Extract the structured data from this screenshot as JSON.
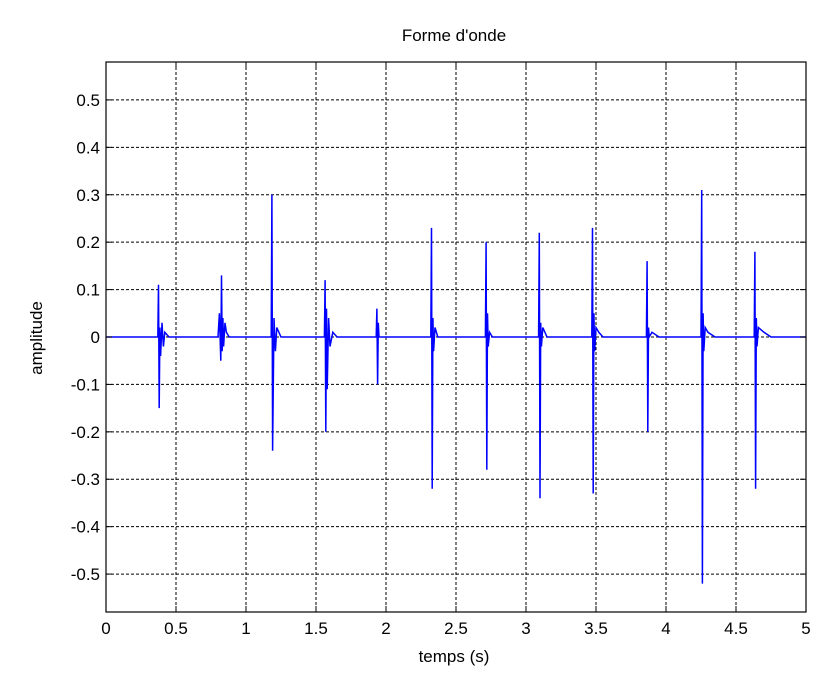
{
  "chart_data": {
    "type": "line",
    "title": "Forme d'onde",
    "xlabel": "temps (s)",
    "ylabel": "amplitude",
    "xlim": [
      0,
      5
    ],
    "ylim": [
      -0.58,
      0.58
    ],
    "xticks": [
      0,
      0.5,
      1,
      1.5,
      2,
      2.5,
      3,
      3.5,
      4,
      4.5,
      5
    ],
    "xtick_labels": [
      "0",
      "0.5",
      "1",
      "1.5",
      "2",
      "2.5",
      "3",
      "3.5",
      "4",
      "4.5",
      "5"
    ],
    "yticks": [
      0.5,
      0.4,
      0.3,
      0.2,
      0.1,
      0,
      -0.1,
      -0.2,
      -0.3,
      -0.4,
      -0.5
    ],
    "ytick_labels": [
      "0.5",
      "0.4",
      "0.3",
      "0.2",
      "0.1",
      "0",
      "-0.1",
      "-0.2",
      "-0.3",
      "-0.4",
      "-0.5"
    ],
    "grid": true,
    "line_color": "#0000ff",
    "series": [
      {
        "x": [
          0,
          0.37,
          0.375,
          0.38,
          0.385,
          0.39,
          0.4,
          0.41,
          0.42,
          0.45,
          0.5,
          0.8,
          0.81,
          0.82,
          0.825,
          0.83,
          0.835,
          0.84,
          0.85,
          0.86,
          0.88,
          0.92,
          1.18,
          1.185,
          1.19,
          1.2,
          1.21,
          1.22,
          1.25,
          1.3,
          1.56,
          1.565,
          1.57,
          1.575,
          1.58,
          1.59,
          1.6,
          1.62,
          1.65,
          1.93,
          1.935,
          1.94,
          1.945,
          1.95,
          2.0,
          2.1,
          2.32,
          2.325,
          2.33,
          2.335,
          2.34,
          2.35,
          2.37,
          2.4,
          2.71,
          2.715,
          2.72,
          2.725,
          2.73,
          2.74,
          2.76,
          2.8,
          3.09,
          3.095,
          3.1,
          3.105,
          3.11,
          3.12,
          3.15,
          3.2,
          3.47,
          3.475,
          3.48,
          3.485,
          3.49,
          3.5,
          3.52,
          3.55,
          3.6,
          3.86,
          3.865,
          3.87,
          3.875,
          3.88,
          3.9,
          3.95,
          4.25,
          4.255,
          4.26,
          4.265,
          4.27,
          4.28,
          4.3,
          4.35,
          4.63,
          4.635,
          4.64,
          4.645,
          4.65,
          4.66,
          4.7,
          4.75,
          5.0
        ],
        "y": [
          0.0,
          0.0,
          0.11,
          -0.15,
          0.02,
          -0.04,
          0.03,
          -0.02,
          0.01,
          0.0,
          0.0,
          0.0,
          0.05,
          -0.05,
          0.13,
          -0.03,
          0.04,
          -0.02,
          0.03,
          0.01,
          0.0,
          0.0,
          0.0,
          0.3,
          -0.24,
          0.04,
          -0.03,
          0.02,
          0.0,
          0.0,
          0.0,
          0.12,
          -0.2,
          0.06,
          -0.11,
          0.04,
          -0.02,
          0.01,
          0.0,
          0.0,
          0.06,
          -0.1,
          0.03,
          0.0,
          0.0,
          0.0,
          0.0,
          0.23,
          -0.32,
          0.04,
          -0.03,
          0.02,
          0.0,
          0.0,
          0.0,
          0.2,
          -0.28,
          0.05,
          -0.02,
          0.01,
          0.0,
          0.0,
          0.0,
          0.22,
          -0.34,
          0.03,
          -0.02,
          0.02,
          0.0,
          0.0,
          0.0,
          0.23,
          -0.33,
          0.05,
          -0.03,
          0.02,
          0.01,
          0.0,
          0.0,
          0.0,
          0.16,
          -0.2,
          0.02,
          0.0,
          0.01,
          0.0,
          0.0,
          0.31,
          -0.52,
          0.05,
          -0.03,
          0.02,
          0.01,
          0.0,
          0.0,
          0.18,
          -0.32,
          0.04,
          -0.02,
          0.02,
          0.01,
          0.0,
          0.0
        ]
      }
    ]
  }
}
